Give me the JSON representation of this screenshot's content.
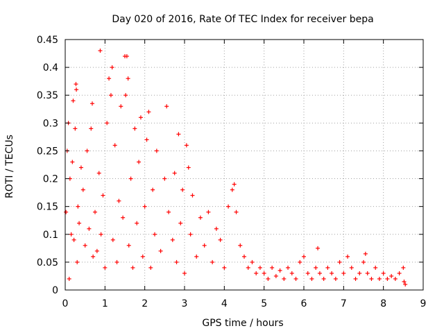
{
  "chart_data": {
    "type": "scatter",
    "title": "Day 020 of 2016, Rate Of TEC Index for receiver bepa",
    "xlabel": "GPS time / hours",
    "ylabel": "ROTI / TECUs",
    "xlim": [
      0,
      9
    ],
    "ylim": [
      0,
      0.45
    ],
    "xticks": [
      0,
      1,
      2,
      3,
      4,
      5,
      6,
      7,
      8,
      9
    ],
    "xtick_labels": [
      "0",
      "1",
      "2",
      "3",
      "4",
      "5",
      "6",
      "7",
      "8",
      "9"
    ],
    "yticks": [
      0,
      0.05,
      0.1,
      0.15,
      0.2,
      0.25,
      0.3,
      0.35,
      0.4,
      0.45
    ],
    "ytick_labels": [
      "0",
      "0.05",
      "0.1",
      "0.15",
      "0.2",
      "0.25",
      "0.3",
      "0.35",
      "0.4",
      "0.45"
    ],
    "grid": true,
    "marker": "+",
    "series": [
      {
        "name": "ROTI",
        "color": "#ff0000",
        "points": [
          [
            0.02,
            0.14
          ],
          [
            0.05,
            0.25
          ],
          [
            0.08,
            0.3
          ],
          [
            0.1,
            0.02
          ],
          [
            0.12,
            0.2
          ],
          [
            0.15,
            0.1
          ],
          [
            0.18,
            0.23
          ],
          [
            0.2,
            0.34
          ],
          [
            0.22,
            0.09
          ],
          [
            0.25,
            0.29
          ],
          [
            0.27,
            0.37
          ],
          [
            0.28,
            0.36
          ],
          [
            0.3,
            0.05
          ],
          [
            0.32,
            0.15
          ],
          [
            0.35,
            0.12
          ],
          [
            0.4,
            0.22
          ],
          [
            0.45,
            0.18
          ],
          [
            0.5,
            0.08
          ],
          [
            0.55,
            0.25
          ],
          [
            0.6,
            0.11
          ],
          [
            0.65,
            0.29
          ],
          [
            0.68,
            0.335
          ],
          [
            0.7,
            0.06
          ],
          [
            0.75,
            0.14
          ],
          [
            0.8,
            0.07
          ],
          [
            0.85,
            0.21
          ],
          [
            0.88,
            0.43
          ],
          [
            0.9,
            0.1
          ],
          [
            0.95,
            0.17
          ],
          [
            1.0,
            0.04
          ],
          [
            1.05,
            0.3
          ],
          [
            1.1,
            0.38
          ],
          [
            1.15,
            0.35
          ],
          [
            1.18,
            0.4
          ],
          [
            1.2,
            0.09
          ],
          [
            1.25,
            0.26
          ],
          [
            1.3,
            0.05
          ],
          [
            1.35,
            0.16
          ],
          [
            1.4,
            0.33
          ],
          [
            1.45,
            0.13
          ],
          [
            1.5,
            0.42
          ],
          [
            1.52,
            0.35
          ],
          [
            1.55,
            0.42
          ],
          [
            1.58,
            0.38
          ],
          [
            1.6,
            0.08
          ],
          [
            1.65,
            0.2
          ],
          [
            1.7,
            0.04
          ],
          [
            1.75,
            0.29
          ],
          [
            1.8,
            0.12
          ],
          [
            1.85,
            0.23
          ],
          [
            1.9,
            0.31
          ],
          [
            1.95,
            0.06
          ],
          [
            2.0,
            0.15
          ],
          [
            2.05,
            0.27
          ],
          [
            2.1,
            0.32
          ],
          [
            2.15,
            0.04
          ],
          [
            2.2,
            0.18
          ],
          [
            2.25,
            0.1
          ],
          [
            2.3,
            0.25
          ],
          [
            2.4,
            0.07
          ],
          [
            2.5,
            0.2
          ],
          [
            2.55,
            0.33
          ],
          [
            2.6,
            0.14
          ],
          [
            2.7,
            0.09
          ],
          [
            2.75,
            0.21
          ],
          [
            2.8,
            0.05
          ],
          [
            2.85,
            0.28
          ],
          [
            2.9,
            0.12
          ],
          [
            2.95,
            0.18
          ],
          [
            3.0,
            0.03
          ],
          [
            3.05,
            0.26
          ],
          [
            3.1,
            0.22
          ],
          [
            3.15,
            0.1
          ],
          [
            3.2,
            0.17
          ],
          [
            3.3,
            0.06
          ],
          [
            3.4,
            0.13
          ],
          [
            3.5,
            0.08
          ],
          [
            3.6,
            0.14
          ],
          [
            3.7,
            0.05
          ],
          [
            3.8,
            0.11
          ],
          [
            3.9,
            0.09
          ],
          [
            4.0,
            0.04
          ],
          [
            4.1,
            0.15
          ],
          [
            4.2,
            0.18
          ],
          [
            4.25,
            0.19
          ],
          [
            4.3,
            0.14
          ],
          [
            4.4,
            0.08
          ],
          [
            4.5,
            0.06
          ],
          [
            4.6,
            0.04
          ],
          [
            4.7,
            0.05
          ],
          [
            4.8,
            0.03
          ],
          [
            4.9,
            0.04
          ],
          [
            5.0,
            0.03
          ],
          [
            5.1,
            0.02
          ],
          [
            5.2,
            0.04
          ],
          [
            5.3,
            0.025
          ],
          [
            5.4,
            0.035
          ],
          [
            5.5,
            0.02
          ],
          [
            5.6,
            0.04
          ],
          [
            5.7,
            0.03
          ],
          [
            5.8,
            0.02
          ],
          [
            5.9,
            0.05
          ],
          [
            6.0,
            0.06
          ],
          [
            6.1,
            0.03
          ],
          [
            6.2,
            0.02
          ],
          [
            6.3,
            0.04
          ],
          [
            6.35,
            0.075
          ],
          [
            6.4,
            0.03
          ],
          [
            6.5,
            0.02
          ],
          [
            6.6,
            0.04
          ],
          [
            6.7,
            0.03
          ],
          [
            6.8,
            0.02
          ],
          [
            6.9,
            0.05
          ],
          [
            7.0,
            0.03
          ],
          [
            7.1,
            0.06
          ],
          [
            7.2,
            0.04
          ],
          [
            7.3,
            0.02
          ],
          [
            7.4,
            0.03
          ],
          [
            7.5,
            0.05
          ],
          [
            7.55,
            0.065
          ],
          [
            7.6,
            0.03
          ],
          [
            7.7,
            0.02
          ],
          [
            7.8,
            0.04
          ],
          [
            7.9,
            0.02
          ],
          [
            8.0,
            0.03
          ],
          [
            8.1,
            0.02
          ],
          [
            8.2,
            0.025
          ],
          [
            8.3,
            0.02
          ],
          [
            8.4,
            0.03
          ],
          [
            8.5,
            0.04
          ],
          [
            8.52,
            0.015
          ],
          [
            8.55,
            0.01
          ]
        ]
      }
    ]
  }
}
